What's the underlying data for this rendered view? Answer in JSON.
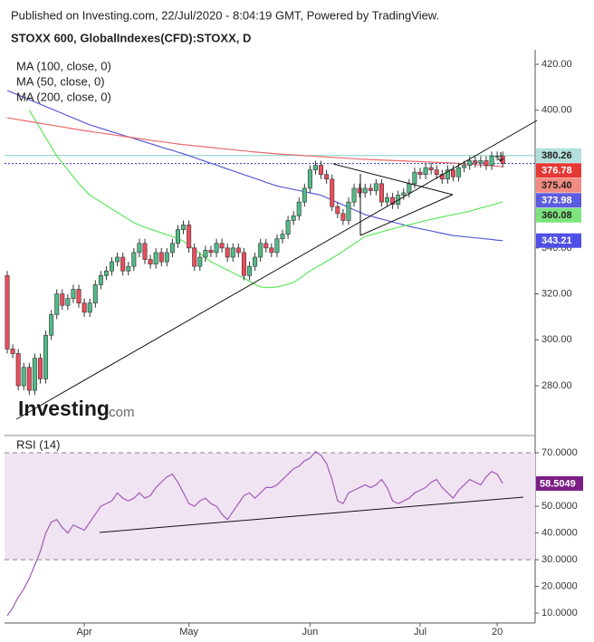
{
  "header": {
    "published": "Published on Investing.com, 22/Jul/2020 - 8:04:19 GMT, Powered by TradingView."
  },
  "watermark": {
    "brand": "Investing",
    "suffix": ".com"
  },
  "chart_data": [
    {
      "type": "candlestick",
      "title": "STOXX 600, GlobalIndexes(CFD):STOXX, D",
      "categories": [
        null,
        null,
        null,
        null,
        null,
        null,
        null,
        null,
        null,
        null,
        null,
        null,
        null,
        null,
        "Apr",
        null,
        null,
        null,
        null,
        null,
        null,
        null,
        null,
        null,
        null,
        null,
        null,
        null,
        null,
        null,
        null,
        null,
        null,
        "May",
        null,
        null,
        null,
        null,
        null,
        null,
        null,
        null,
        null,
        null,
        null,
        null,
        null,
        null,
        null,
        null,
        null,
        null,
        null,
        null,
        null,
        "Jun",
        null,
        null,
        null,
        null,
        null,
        null,
        null,
        null,
        null,
        null,
        null,
        null,
        null,
        null,
        null,
        null,
        null,
        null,
        null,
        "Jul",
        null,
        null,
        null,
        null,
        null,
        null,
        null,
        null,
        null,
        null,
        null,
        null,
        null,
        "20",
        null
      ],
      "open": [
        328,
        296,
        294,
        280,
        288,
        278,
        292,
        283,
        302,
        311,
        320,
        315,
        318,
        322,
        316,
        312,
        316,
        324,
        328,
        330,
        334,
        336,
        330,
        332,
        338,
        342,
        335,
        333,
        338,
        334,
        338,
        342,
        348,
        350,
        340,
        332,
        336,
        339,
        338,
        342,
        340,
        336,
        340,
        338,
        328,
        332,
        336,
        342,
        340,
        338,
        344,
        346,
        352,
        354,
        360,
        366,
        374,
        376,
        372,
        370,
        358,
        355,
        352,
        360,
        366,
        364,
        366,
        365,
        368,
        360,
        362,
        359,
        363,
        364,
        368,
        373,
        372,
        375,
        374,
        372,
        370,
        374,
        371,
        375,
        376,
        378,
        377,
        378,
        376,
        380,
        380
      ],
      "high": [
        330,
        298,
        296,
        290,
        290,
        294,
        294,
        304,
        313,
        322,
        322,
        320,
        324,
        324,
        318,
        318,
        326,
        330,
        332,
        336,
        338,
        338,
        334,
        340,
        344,
        344,
        337,
        340,
        340,
        340,
        344,
        350,
        352,
        352,
        342,
        338,
        341,
        341,
        344,
        344,
        342,
        342,
        342,
        340,
        334,
        338,
        344,
        344,
        342,
        346,
        348,
        354,
        356,
        362,
        368,
        376,
        378,
        378,
        374,
        372,
        360,
        357,
        362,
        368,
        368,
        368,
        368,
        370,
        370,
        364,
        364,
        365,
        366,
        370,
        375,
        375,
        377,
        377,
        376,
        374,
        376,
        376,
        377,
        378,
        380,
        380,
        380,
        380,
        382,
        382,
        382
      ],
      "low": [
        294,
        292,
        278,
        278,
        276,
        276,
        281,
        281,
        300,
        309,
        313,
        313,
        316,
        314,
        310,
        310,
        314,
        322,
        326,
        328,
        332,
        328,
        328,
        330,
        336,
        333,
        331,
        331,
        332,
        332,
        336,
        340,
        346,
        338,
        330,
        330,
        334,
        336,
        336,
        338,
        334,
        334,
        336,
        326,
        326,
        330,
        334,
        338,
        336,
        336,
        342,
        344,
        350,
        352,
        358,
        364,
        372,
        370,
        368,
        356,
        353,
        350,
        350,
        358,
        362,
        362,
        363,
        363,
        358,
        358,
        357,
        357,
        361,
        362,
        366,
        370,
        370,
        372,
        370,
        368,
        368,
        369,
        369,
        373,
        374,
        375,
        375,
        374,
        374,
        378,
        375
      ],
      "close": [
        296,
        294,
        280,
        288,
        278,
        292,
        283,
        302,
        311,
        320,
        315,
        318,
        322,
        316,
        312,
        316,
        324,
        328,
        330,
        334,
        336,
        330,
        332,
        338,
        342,
        335,
        333,
        338,
        334,
        338,
        342,
        348,
        350,
        340,
        332,
        336,
        339,
        338,
        342,
        340,
        336,
        340,
        338,
        328,
        332,
        336,
        342,
        340,
        338,
        344,
        346,
        352,
        354,
        360,
        366,
        374,
        376,
        372,
        370,
        358,
        355,
        352,
        360,
        366,
        364,
        366,
        365,
        368,
        360,
        362,
        359,
        363,
        364,
        368,
        373,
        372,
        375,
        374,
        372,
        370,
        374,
        371,
        375,
        376,
        378,
        377,
        378,
        376,
        380,
        380,
        376.78
      ],
      "up_color": "#53b987",
      "down_color": "#eb4d5c",
      "edge_color": "#333333",
      "series": [
        {
          "name": "MA (100, close, 0)",
          "color": "#5b5bd6",
          "values": [
            408.6,
            407.6,
            406.6,
            405.6,
            404.6,
            403.6,
            402.6,
            401.6,
            400.6,
            399.6,
            398.6,
            397.6,
            396.6,
            395.6,
            394.6,
            393.6,
            392.9,
            392.1,
            391.4,
            390.6,
            389.9,
            389.1,
            388.4,
            387.7,
            386.9,
            386.2,
            385.4,
            384.7,
            383.9,
            383.2,
            382.5,
            381.7,
            381,
            380.2,
            379.4,
            378.5,
            377.7,
            376.9,
            376.1,
            375.2,
            374.4,
            373.6,
            372.8,
            371.9,
            371.1,
            370.3,
            369.5,
            368.6,
            367.8,
            367,
            366.5,
            366,
            365.5,
            365,
            364.5,
            364,
            363.5,
            363,
            361.9,
            360.9,
            359.8,
            358.8,
            357.7,
            356.6,
            355.6,
            354.5,
            353.9,
            353.2,
            352.6,
            352,
            351.3,
            350.7,
            350.1,
            349.4,
            348.9,
            348.4,
            347.9,
            347.4,
            346.9,
            346.4,
            345.9,
            345.4,
            345.2,
            344.9,
            344.7,
            344.4,
            344.2,
            343.9,
            343.7,
            343.4,
            343.21
          ]
        },
        {
          "name": "MA (50, close, 0)",
          "color": "#5ee85e",
          "values": [
            null,
            null,
            null,
            null,
            400,
            396,
            392,
            388,
            384,
            380,
            377,
            374,
            371,
            368,
            365.5,
            363,
            361.5,
            360,
            358.5,
            357,
            355.5,
            354,
            352.5,
            351,
            350,
            349,
            348.2,
            347.4,
            346.6,
            345.8,
            345,
            344,
            343,
            341.2,
            339.4,
            337.6,
            335.8,
            334,
            332.8,
            331.6,
            330.4,
            329.2,
            328,
            326.8,
            325.5,
            324.2,
            323,
            322.8,
            322.8,
            323,
            323.6,
            324.2,
            325,
            326.6,
            328.3,
            330,
            331.4,
            332.8,
            334.2,
            335.6,
            337,
            338.6,
            340.2,
            341.8,
            343.4,
            345,
            345.7,
            346.3,
            347,
            347.7,
            348.3,
            349,
            349.6,
            350.1,
            350.7,
            351.3,
            351.9,
            352.4,
            353,
            353.5,
            354,
            354.5,
            355,
            355.5,
            356,
            356.7,
            357.4,
            358,
            358.7,
            359.4,
            360.08
          ]
        },
        {
          "name": "MA (200, close, 0)",
          "color": "#e86a6a",
          "values": [
            396.7,
            396.3,
            395.9,
            395.5,
            395.1,
            394.7,
            394.3,
            393.9,
            393.5,
            393.1,
            392.7,
            392.3,
            391.9,
            391.5,
            391.1,
            390.8,
            390.4,
            390.1,
            389.7,
            389.4,
            389,
            388.7,
            388.3,
            388,
            387.6,
            387.3,
            386.9,
            386.6,
            386.3,
            386,
            385.6,
            385.3,
            385,
            384.8,
            384.5,
            384.3,
            384,
            383.8,
            383.5,
            383.3,
            383,
            382.8,
            382.5,
            382.3,
            382,
            381.8,
            381.6,
            381.4,
            381.2,
            381,
            380.8,
            380.7,
            380.5,
            380.4,
            380.2,
            380.1,
            379.9,
            379.8,
            379.6,
            379.5,
            379.3,
            379.2,
            379,
            378.9,
            378.7,
            378.6,
            378.5,
            378.4,
            378.3,
            378.2,
            378.1,
            378,
            377.9,
            377.8,
            377.7,
            377.6,
            377.5,
            377.4,
            377.3,
            377.2,
            377.1,
            377,
            376.8,
            376.6,
            376.5,
            376.3,
            376.1,
            375.9,
            375.8,
            375.6,
            375.4
          ]
        }
      ],
      "price_lines": [
        {
          "value": 380.26,
          "color": "#7fcfc9",
          "style": "solid"
        },
        {
          "value": 376.78,
          "color": "#3030c0",
          "style": "dotted"
        }
      ],
      "markers": [
        {
          "value": 380.26,
          "label": "380.26",
          "color": "#b2dfdb",
          "text_color": "#222222"
        },
        {
          "value": 376.78,
          "label": "376.78",
          "color": "#e53935",
          "text_color": "#ffffff"
        },
        {
          "value": 375.4,
          "label": "375.40",
          "color": "#f28b82",
          "text_color": "#222222"
        },
        {
          "value": 373.98,
          "label": "373.98",
          "color": "#5c5ce0",
          "text_color": "#ffffff"
        },
        {
          "value": 360.08,
          "label": "360.08",
          "color": "#7de37d",
          "text_color": "#222222"
        },
        {
          "value": 343.21,
          "label": "343.21",
          "color": "#4f4fe6",
          "text_color": "#ffffff"
        }
      ],
      "ylim": [
        259.5,
        426.3
      ],
      "yticks": [
        {
          "value": 280,
          "label": "280.00"
        },
        {
          "value": 300,
          "label": "300.00"
        },
        {
          "value": 320,
          "label": "320.00"
        },
        {
          "value": 340,
          "label": "340.00"
        },
        {
          "value": 400,
          "label": "400.00"
        },
        {
          "value": 420,
          "label": "420.00"
        }
      ]
    },
    {
      "type": "line",
      "title": "RSI (14)",
      "color": "#a05ab8",
      "band_color": "#f1e4f2",
      "values": [
        9,
        12,
        16,
        19,
        23,
        28,
        33,
        40,
        44,
        45,
        42,
        40,
        43,
        42,
        41,
        44,
        47,
        50,
        51,
        52,
        55,
        53,
        52,
        53,
        55,
        53,
        54,
        57,
        59,
        61,
        62,
        59,
        55,
        51,
        50,
        52,
        53,
        51,
        50,
        47,
        45,
        48,
        51,
        54,
        55,
        53,
        55,
        57,
        57,
        58,
        60,
        62,
        64,
        65,
        67,
        68,
        70.5,
        69,
        66,
        60,
        52,
        51,
        55,
        56,
        57,
        58,
        57,
        58,
        60,
        57,
        52,
        51,
        52,
        53,
        55,
        56,
        57,
        59,
        60,
        57,
        55,
        53,
        56,
        58,
        60,
        59,
        58,
        61,
        63,
        62,
        58.5049
      ],
      "levels": [
        30,
        70
      ],
      "marker": {
        "value": 58.5049,
        "color": "#7b1f86",
        "text_color": "#ffffff"
      },
      "ylim": [
        6.3,
        75.1
      ],
      "yticks": [
        {
          "value": 10,
          "label": "10.0000"
        },
        {
          "value": 20,
          "label": "20.0000"
        },
        {
          "value": 30,
          "label": "30.0000"
        },
        {
          "value": 40,
          "label": "40.0000"
        },
        {
          "value": 50,
          "label": "50.0000"
        },
        {
          "value": 70,
          "label": "70.0000"
        }
      ]
    }
  ]
}
